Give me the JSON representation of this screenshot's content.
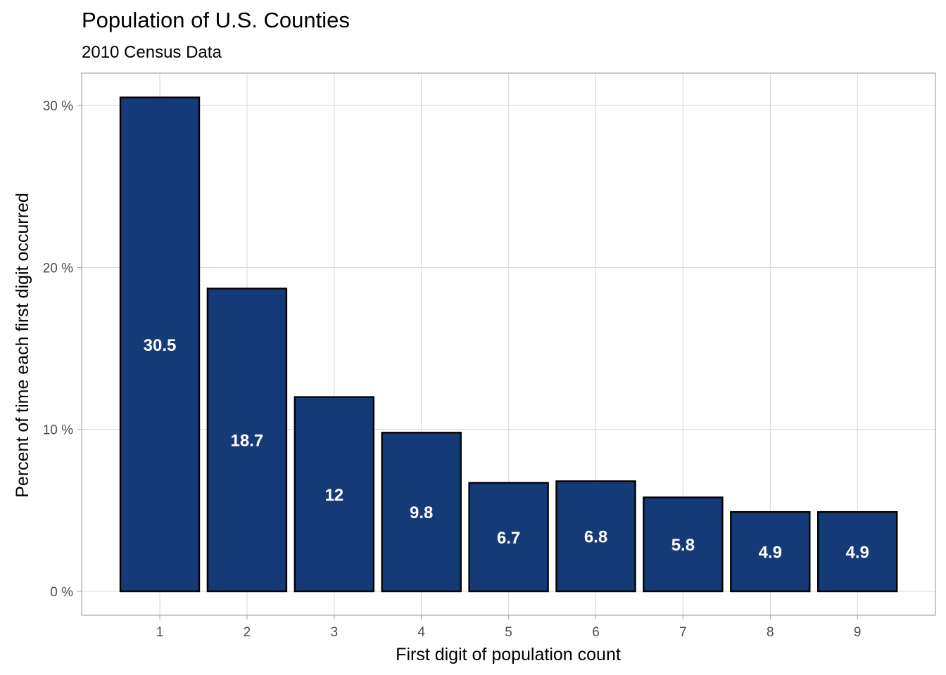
{
  "chart_data": {
    "type": "bar",
    "title": "Population of U.S. Counties",
    "subtitle": "2010 Census Data",
    "xlabel": "First digit of population count",
    "ylabel": "Percent of time each first digit occurred",
    "categories": [
      "1",
      "2",
      "3",
      "4",
      "5",
      "6",
      "7",
      "8",
      "9"
    ],
    "values": [
      30.5,
      18.7,
      12,
      9.8,
      6.7,
      6.8,
      5.8,
      4.9,
      4.9
    ],
    "labels": [
      "30.5",
      "18.7",
      "12",
      "9.8",
      "6.7",
      "6.8",
      "5.8",
      "4.9",
      "4.9"
    ],
    "y_ticks": [
      0,
      10,
      20,
      30
    ],
    "y_tick_labels": [
      "0 %",
      "10 %",
      "20 %",
      "30 %"
    ],
    "ylim": [
      -1.5,
      32.5
    ],
    "grid": true,
    "legend": "none",
    "colors": {
      "bar_fill": "#143a78",
      "bar_outline": "#000000",
      "grid": "#d9d9d9",
      "panel_border": "#a6a6a6"
    }
  }
}
